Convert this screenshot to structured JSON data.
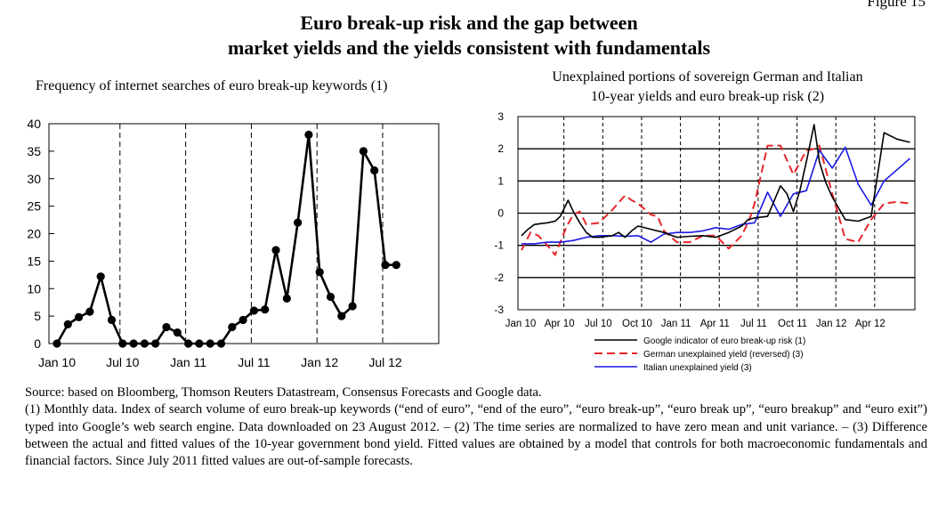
{
  "figure_label": "Figure 15",
  "main_title": {
    "line1": "Euro break-up risk and the gap between",
    "line2": "market yields and the yields consistent with fundamentals"
  },
  "chart_data": [
    {
      "type": "line",
      "title": "Frequency of internet searches of euro break-up keywords (1)",
      "ylim": [
        0,
        40
      ],
      "yticks": [
        "0",
        "5",
        "10",
        "15",
        "20",
        "25",
        "30",
        "35",
        "40"
      ],
      "xtick_labels": [
        "Jan 10",
        "Jul 10",
        "Jan 11",
        "Jul 11",
        "Jan 12",
        "Jul 12"
      ],
      "xtick_month_index": [
        0,
        6,
        12,
        18,
        24,
        30
      ],
      "vlines_month_index": [
        6,
        12,
        18,
        24,
        30
      ],
      "grid": false,
      "markers": true,
      "series": [
        {
          "values": [
            0,
            3.5,
            4.8,
            5.8,
            12.2,
            4.3,
            0,
            0,
            0,
            0,
            3,
            2,
            0,
            0,
            0,
            0,
            3,
            4.3,
            6,
            6.2,
            17,
            8.2,
            22,
            38,
            13,
            8.5,
            5,
            6.8,
            35,
            31.5,
            14.3,
            14.3
          ]
        }
      ]
    },
    {
      "type": "line",
      "title": "Unexplained portions of sovereign German and Italian 10-year yields and euro break-up risk (2)",
      "ylim": [
        -3,
        3
      ],
      "yticks": [
        "-3",
        "-2",
        "-1",
        "0",
        "1",
        "2",
        "3"
      ],
      "xtick_labels": [
        "Jan 10",
        "Apr 10",
        "Jul 10",
        "Oct 10",
        "Jan 11",
        "Apr 11",
        "Jul 11",
        "Oct 11",
        "Jan 12",
        "Apr 12"
      ],
      "xtick_month_index": [
        0,
        3,
        6,
        9,
        12,
        15,
        18,
        21,
        24,
        27
      ],
      "vlines_month_index": [
        3,
        6,
        9,
        12,
        15,
        18,
        21,
        24,
        27
      ],
      "grid": true,
      "legend_position": "bottom",
      "series": [
        {
          "name": "Google indicator of euro break-up risk (1)",
          "color": "#000000",
          "style": "solid",
          "x": [
            0,
            0.5,
            1,
            2,
            2.6,
            3,
            3.6,
            4,
            4.5,
            5,
            5.5,
            6,
            7,
            7.5,
            8,
            8.5,
            9,
            10,
            11,
            12,
            13,
            14,
            15,
            16,
            17,
            17.5,
            18,
            19,
            20,
            20.5,
            21,
            21.5,
            22,
            22.6,
            23,
            23.5,
            24,
            25,
            26,
            27,
            28,
            29,
            30
          ],
          "values": [
            -0.7,
            -0.5,
            -0.35,
            -0.3,
            -0.25,
            -0.1,
            0.4,
            0.05,
            -0.3,
            -0.6,
            -0.75,
            -0.75,
            -0.7,
            -0.6,
            -0.75,
            -0.55,
            -0.4,
            -0.5,
            -0.6,
            -0.75,
            -0.72,
            -0.7,
            -0.75,
            -0.6,
            -0.4,
            -0.2,
            -0.15,
            -0.1,
            0.85,
            0.6,
            0.05,
            0.7,
            1.6,
            2.75,
            1.6,
            0.95,
            0.5,
            -0.2,
            -0.25,
            -0.1,
            2.5,
            2.3,
            2.2
          ]
        },
        {
          "name": "German unexplained yield (reversed) (3)",
          "color": "#e8262b",
          "style": "dashed",
          "x": [
            0,
            0.7,
            1.3,
            2,
            2.6,
            3,
            3.5,
            4,
            4.5,
            5,
            6,
            7,
            8,
            8.5,
            9,
            10,
            10.5,
            11,
            12,
            13,
            14,
            15,
            16,
            17,
            17.6,
            18,
            19,
            20,
            21,
            22,
            22.6,
            23,
            24,
            25,
            26,
            27,
            28,
            29,
            30
          ],
          "values": [
            -1.15,
            -0.6,
            -0.7,
            -1.0,
            -1.3,
            -0.9,
            -0.4,
            -0.05,
            0.05,
            -0.35,
            -0.3,
            0.1,
            0.55,
            0.4,
            0.3,
            -0.05,
            -0.1,
            -0.55,
            -0.9,
            -0.9,
            -0.7,
            -0.7,
            -1.1,
            -0.7,
            -0.2,
            0.3,
            2.1,
            2.1,
            1.2,
            1.95,
            2.0,
            2.1,
            0.6,
            -0.8,
            -0.9,
            -0.2,
            0.3,
            0.35,
            0.3
          ]
        },
        {
          "name": "Italian unexplained yield (3)",
          "color": "#1a1ae6",
          "style": "solid",
          "x": [
            0,
            1,
            2,
            3,
            4,
            5,
            6,
            7,
            8,
            9,
            10,
            11,
            12,
            13,
            14,
            15,
            16,
            17,
            18,
            19,
            20,
            21,
            22,
            23,
            24,
            25,
            26,
            27,
            28,
            29,
            30
          ],
          "values": [
            -0.95,
            -0.95,
            -0.9,
            -0.9,
            -0.85,
            -0.75,
            -0.7,
            -0.7,
            -0.72,
            -0.7,
            -0.9,
            -0.65,
            -0.6,
            -0.6,
            -0.55,
            -0.45,
            -0.5,
            -0.35,
            -0.3,
            0.65,
            -0.1,
            0.6,
            0.7,
            1.95,
            1.4,
            2.05,
            0.9,
            0.25,
            1.0,
            1.35,
            1.7
          ]
        }
      ]
    }
  ],
  "caption": {
    "source": "Source: based on Bloomberg, Thomson Reuters Datastream, Consensus Forecasts and Google data.",
    "notes": "(1) Monthly data. Index of search volume of euro break-up keywords (“end of euro”, “end of the euro”, “euro break-up”, “euro break up”, “euro breakup” and “euro exit”) typed into Google’s web search engine. Data downloaded on 23 August 2012. – (2) The time series are normalized to have zero mean and unit variance. – (3) Difference between the actual and fitted values of the 10-year government bond yield. Fitted values are obtained by a model that controls for both macroeconomic fundamentals and financial factors. Since July 2011 fitted values are out-of-sample forecasts."
  }
}
